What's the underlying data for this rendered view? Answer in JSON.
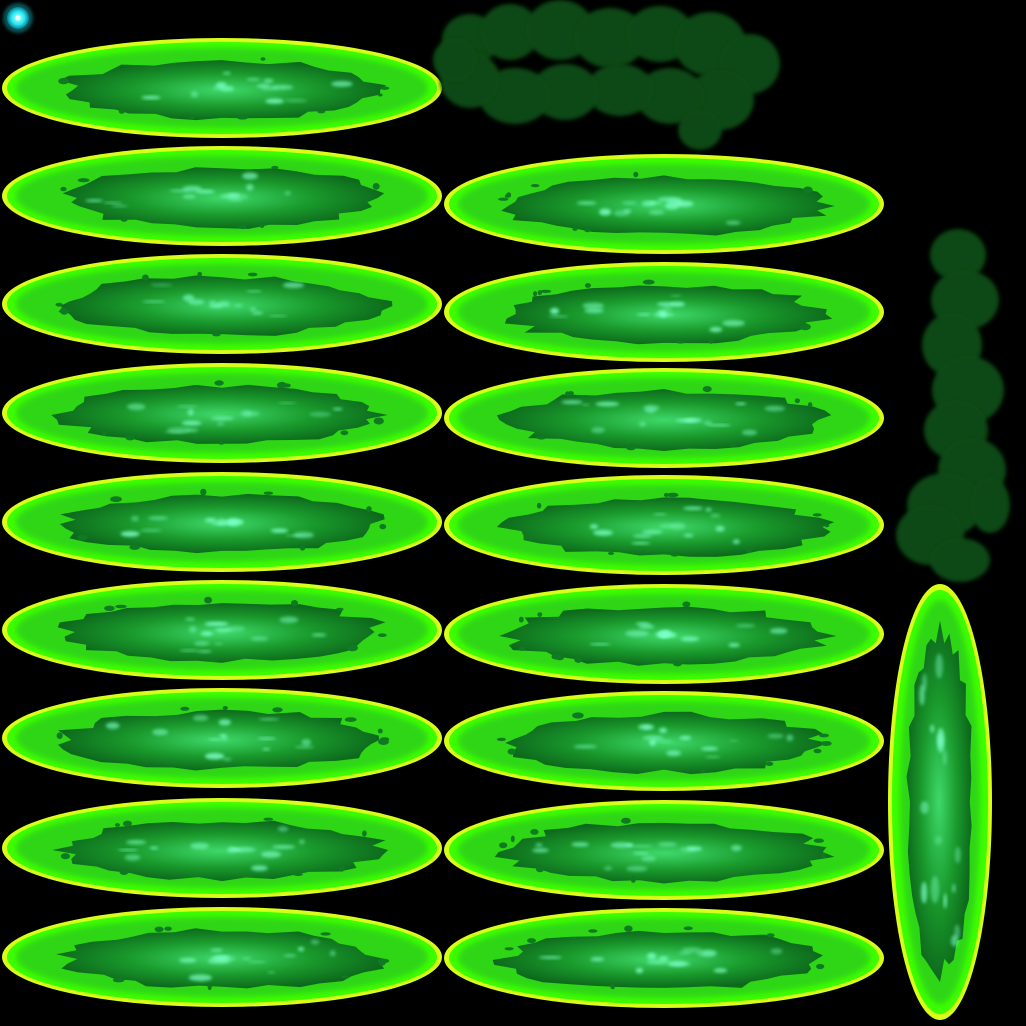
{
  "sheet": {
    "background": "#000000",
    "palette": {
      "rim": "#d8ff1a",
      "glow": "#3cff00",
      "body": "#22b81a",
      "core": "#0f7a22",
      "spark": "#7dffc8",
      "smoke": "#0b4a12",
      "gem": "#22e8f0"
    },
    "frame_count_column_1": 9,
    "frame_count_column_2": 8,
    "extras": [
      "cyan-gem",
      "smoke-cloud-horizontal",
      "smoke-cloud-vertical",
      "vertical-slime-puddle"
    ]
  }
}
